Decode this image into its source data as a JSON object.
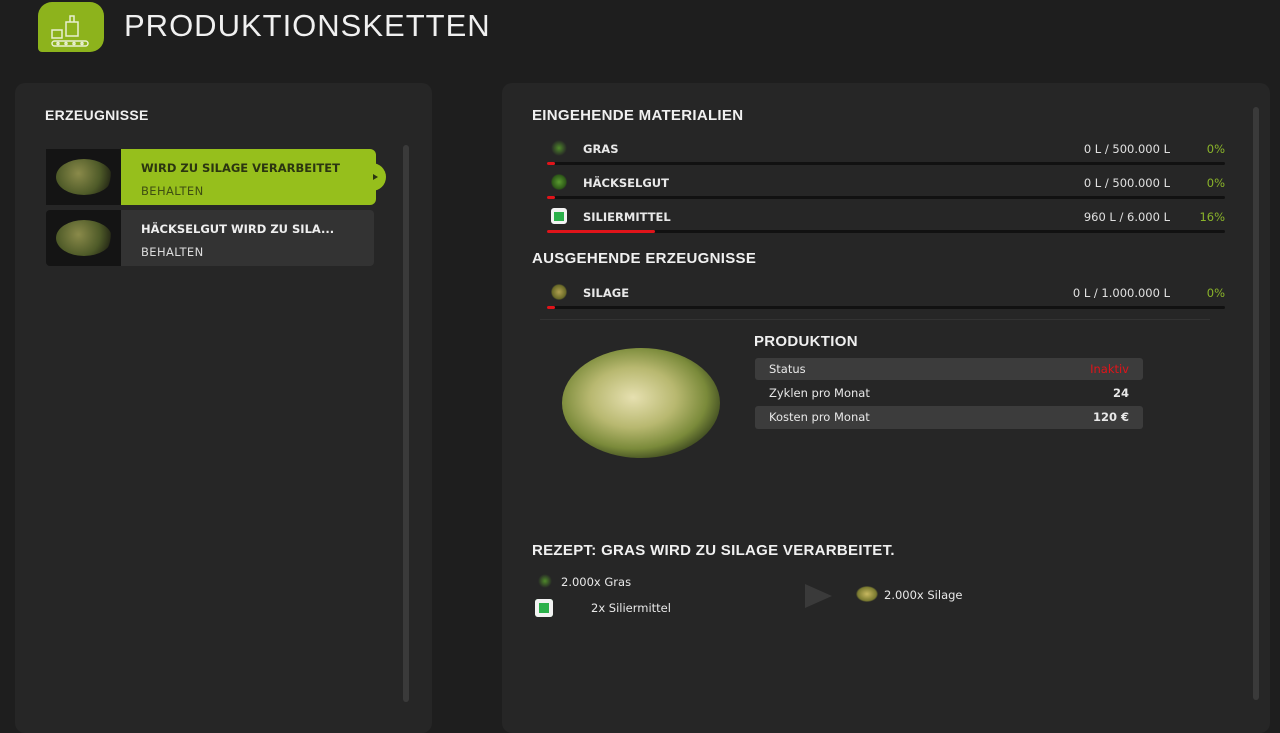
{
  "header": {
    "title": "PRODUKTIONSKETTEN",
    "icon": "production-line-icon",
    "accent": "#8db31c"
  },
  "left": {
    "title": "ERZEUGNISSE",
    "items": [
      {
        "title": "WIRD ZU SILAGE VERARBEITET",
        "mode": "BEHALTEN",
        "selected": true
      },
      {
        "title": "HÄCKSELGUT WIRD ZU SILA...",
        "mode": "BEHALTEN",
        "selected": false
      }
    ]
  },
  "incoming": {
    "title": "EINGEHENDE MATERIALIEN",
    "rows": [
      {
        "name": "GRAS",
        "value": "0 L / 500.000 L",
        "percent": "0%",
        "fill": 0,
        "icon": "grass-icon"
      },
      {
        "name": "HÄCKSELGUT",
        "value": "0 L / 500.000 L",
        "percent": "0%",
        "fill": 0,
        "icon": "chaff-icon"
      },
      {
        "name": "SILIERMITTEL",
        "value": "960 L / 6.000 L",
        "percent": "16%",
        "fill": 16,
        "icon": "silage-additive-icon"
      }
    ]
  },
  "outgoing": {
    "title": "AUSGEHENDE ERZEUGNISSE",
    "rows": [
      {
        "name": "SILAGE",
        "value": "0 L / 1.000.000 L",
        "percent": "0%",
        "fill": 0,
        "icon": "silage-icon"
      }
    ]
  },
  "production": {
    "title": "PRODUKTION",
    "rows": [
      {
        "label": "Status",
        "value": "Inaktiv",
        "color": "#e0141a"
      },
      {
        "label": "Zyklen pro Monat",
        "value": "24"
      },
      {
        "label": "Kosten pro Monat",
        "value": "120 €"
      }
    ]
  },
  "recipe": {
    "title": "REZEPT: GRAS WIRD ZU SILAGE VERARBEITET.",
    "inputs": [
      "2.000x Gras",
      "2x Siliermittel"
    ],
    "output": "2.000x Silage"
  }
}
